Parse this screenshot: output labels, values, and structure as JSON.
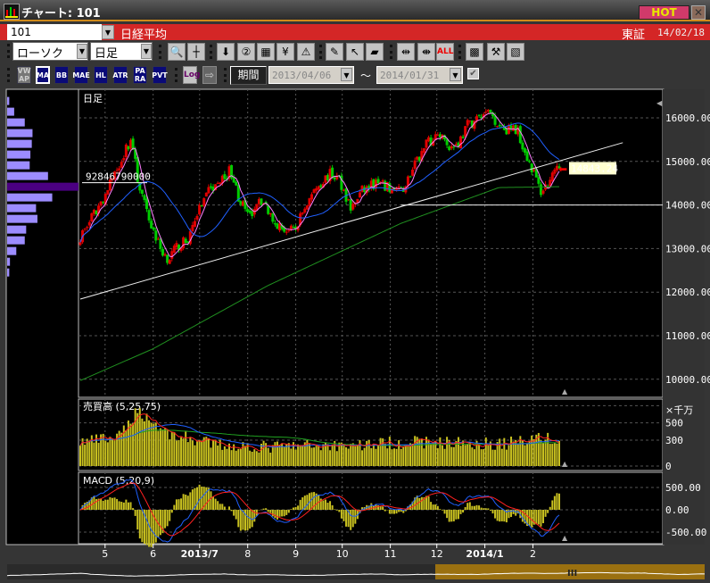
{
  "window": {
    "title": "チャート: 101",
    "hot_label": "HOT",
    "close_icon": "close-icon"
  },
  "symbol": {
    "code": "101",
    "name": "日経平均",
    "exchange": "東証",
    "date": "14/02/18"
  },
  "toolbar1": {
    "chart_type": "ローソク",
    "period": "日足",
    "icons": [
      "zoom-icon",
      "crosshair-icon",
      "signal-icon",
      "search-icon",
      "grid-icon",
      "yen-icon",
      "warning-icon",
      "pencil-icon",
      "cursor-icon",
      "eraser-icon",
      "expand-icon",
      "shrink-icon",
      "all-icon",
      "pattern-icon",
      "tool-icon",
      "color-icon"
    ],
    "all_label": "ALL"
  },
  "toolbar2": {
    "indicators": [
      "VW AP",
      "MA",
      "BB",
      "MAE",
      "HL",
      "ATR",
      "PA RA",
      "PVT"
    ],
    "active": "MA",
    "log_label": "Log",
    "range_label": "期間",
    "from": "2013/04/06",
    "tilde": "〜",
    "to": "2014/01/31",
    "range_checked": true
  },
  "colors": {
    "up": "#e00000",
    "down": "#00cc00",
    "ma_short": "#ff80ff",
    "ma_mid": "#2060ff",
    "ma_long": "#209020",
    "background": "#000000",
    "grid": "#555555"
  },
  "chart_data": [
    {
      "type": "candlestick",
      "panel_label": "日足",
      "ylim": [
        9800,
        16500
      ],
      "yticks": [
        10000,
        11000,
        12000,
        13000,
        14000,
        15000,
        16000
      ],
      "y_tick_labels": [
        "10000.00",
        "11000.00",
        "12000.00",
        "13000.00",
        "14000.00",
        "15000.00",
        "16000.00"
      ],
      "x_range": [
        "2013-04-15",
        "2014-02-18"
      ],
      "x_ticks": [
        {
          "label": "5",
          "date": "2013-05-01"
        },
        {
          "label": "6",
          "date": "2013-06-01"
        },
        {
          "label": "2013/7",
          "date": "2013-07-01",
          "bold": true
        },
        {
          "label": "8",
          "date": "2013-08-01"
        },
        {
          "label": "9",
          "date": "2013-09-01"
        },
        {
          "label": "10",
          "date": "2013-10-01"
        },
        {
          "label": "11",
          "date": "2013-11-01"
        },
        {
          "label": "12",
          "date": "2013-12-01"
        },
        {
          "label": "2014/1",
          "date": "2014-01-01",
          "bold": true
        },
        {
          "label": "2",
          "date": "2014-02-01"
        }
      ],
      "close_points": [
        [
          "2013-04-15",
          13275
        ],
        [
          "2013-04-24",
          13790
        ],
        [
          "2013-05-02",
          14300
        ],
        [
          "2013-05-11",
          15020
        ],
        [
          "2013-05-18",
          15530
        ],
        [
          "2013-05-22",
          14600
        ],
        [
          "2013-05-28",
          13790
        ],
        [
          "2013-06-06",
          12970
        ],
        [
          "2013-06-11",
          12760
        ],
        [
          "2013-06-17",
          13070
        ],
        [
          "2013-06-23",
          13170
        ],
        [
          "2013-06-29",
          13790
        ],
        [
          "2013-07-07",
          14300
        ],
        [
          "2013-07-16",
          14600
        ],
        [
          "2013-07-21",
          14810
        ],
        [
          "2013-07-26",
          14200
        ],
        [
          "2013-08-02",
          13680
        ],
        [
          "2013-08-08",
          14200
        ],
        [
          "2013-08-14",
          13890
        ],
        [
          "2013-08-22",
          13480
        ],
        [
          "2013-08-31",
          13380
        ],
        [
          "2013-09-06",
          13890
        ],
        [
          "2013-09-14",
          14400
        ],
        [
          "2013-09-23",
          14710
        ],
        [
          "2013-09-29",
          14600
        ],
        [
          "2013-10-07",
          13890
        ],
        [
          "2013-10-13",
          14300
        ],
        [
          "2013-10-22",
          14500
        ],
        [
          "2013-10-30",
          14400
        ],
        [
          "2013-11-08",
          14300
        ],
        [
          "2013-11-17",
          14910
        ],
        [
          "2013-11-25",
          15430
        ],
        [
          "2013-12-04",
          15630
        ],
        [
          "2013-12-10",
          15320
        ],
        [
          "2013-12-15",
          15430
        ],
        [
          "2013-12-21",
          15840
        ],
        [
          "2013-12-30",
          16040
        ],
        [
          "2014-01-04",
          16140
        ],
        [
          "2014-01-10",
          15840
        ],
        [
          "2014-01-16",
          15730
        ],
        [
          "2014-01-22",
          15730
        ],
        [
          "2014-01-27",
          15220
        ],
        [
          "2014-02-02",
          14710
        ],
        [
          "2014-02-06",
          14300
        ],
        [
          "2014-02-11",
          14500
        ],
        [
          "2014-02-18",
          14843.24
        ]
      ],
      "last_price_label": "14843.24",
      "long_ma_points": [
        [
          "2013-04-15",
          9970
        ],
        [
          "2013-06-01",
          10700
        ],
        [
          "2013-08-14",
          12150
        ],
        [
          "2013-11-08",
          13580
        ],
        [
          "2014-01-10",
          14400
        ],
        [
          "2014-02-18",
          14420
        ]
      ],
      "trendline": [
        [
          "2013-04-15",
          11840
        ],
        [
          "2014-03-31",
          15430
        ]
      ],
      "hline": {
        "value": 14000,
        "from": "2013-11-08"
      },
      "volume_profile": {
        "price_top": 16500,
        "band": 246,
        "values": [
          3,
          10,
          25,
          36,
          35,
          33,
          32,
          58,
          81,
          64,
          41,
          43,
          27,
          25,
          13,
          4,
          3
        ],
        "max_label": "92846790000",
        "max_index": 8
      }
    },
    {
      "type": "bar",
      "panel_label": "売買高 (5,25,75)",
      "unit_label": "×千万",
      "ylim": [
        0,
        700
      ],
      "yticks": [
        0,
        300,
        500
      ],
      "volume_points": [
        [
          "2013-04-15",
          280
        ],
        [
          "2013-05-10",
          330
        ],
        [
          "2013-05-22",
          650
        ],
        [
          "2013-06-10",
          380
        ],
        [
          "2013-07-10",
          250
        ],
        [
          "2013-08-15",
          220
        ],
        [
          "2013-09-15",
          240
        ],
        [
          "2013-10-15",
          250
        ],
        [
          "2013-11-15",
          280
        ],
        [
          "2013-12-15",
          270
        ],
        [
          "2014-01-15",
          260
        ],
        [
          "2014-02-05",
          350
        ],
        [
          "2014-02-18",
          260
        ]
      ]
    },
    {
      "type": "line",
      "panel_label": "MACD (5,20,9)",
      "ylim": [
        -650,
        650
      ],
      "yticks": [
        -500,
        0,
        500
      ],
      "y_tick_labels": [
        "-500.00",
        "0.00",
        "500.00"
      ]
    }
  ]
}
